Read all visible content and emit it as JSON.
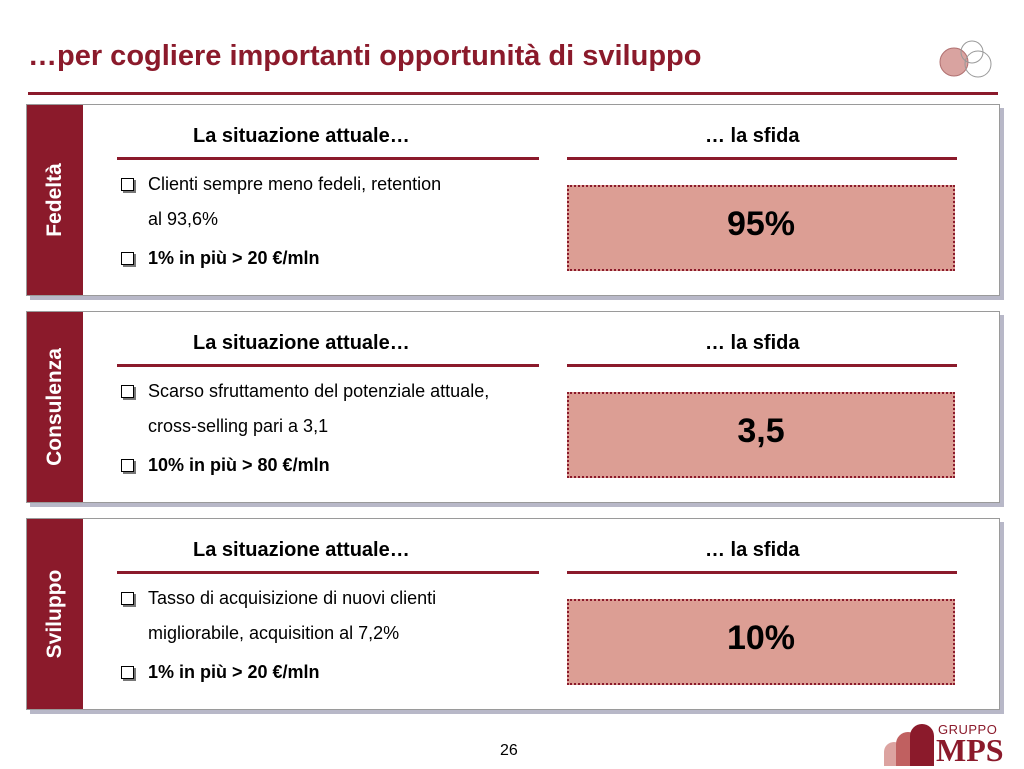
{
  "title": "…per cogliere importanti opportunità di sviluppo",
  "panels": [
    {
      "label": "Fedeltà",
      "current_heading": "La situazione attuale…",
      "challenge_heading": "… la sfida",
      "bullets": [
        "Clienti sempre meno fedeli, retention al 93,6%",
        "1% in più > 20 €/mln"
      ],
      "target": "95%"
    },
    {
      "label": "Consulenza",
      "current_heading": "La situazione attuale…",
      "challenge_heading": "… la sfida",
      "bullets": [
        "Scarso sfruttamento del potenziale attuale, cross-selling pari a 3,1",
        "10% in più > 80 €/mln"
      ],
      "target": "3,5"
    },
    {
      "label": "Sviluppo",
      "current_heading": "La situazione attuale…",
      "challenge_heading": "… la sfida",
      "bullets": [
        "Tasso di acquisizione di nuovi clienti migliorabile, acquisition al 7,2%",
        "1% in più > 20 €/mln"
      ],
      "target": "10%"
    }
  ],
  "page_number": "26",
  "logo": {
    "top": "GRUPPO",
    "main": "MPS"
  },
  "colors": {
    "accent": "#8b1a2b",
    "target_fill": "#dc9e94"
  }
}
